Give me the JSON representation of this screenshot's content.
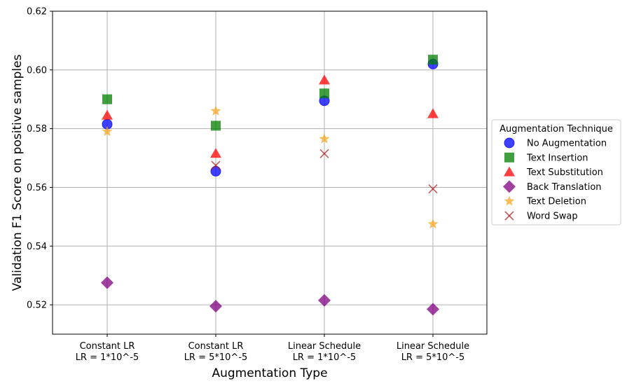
{
  "chart_data": {
    "type": "scatter",
    "xlabel": "Augmentation Type",
    "ylabel": "Validation F1 Score on positive samples",
    "ylim": [
      0.51,
      0.62
    ],
    "yticks": [
      "0.52",
      "0.54",
      "0.56",
      "0.58",
      "0.60",
      "0.62"
    ],
    "grid": true,
    "categories": [
      [
        "Constant LR",
        "LR = 1*10^-5"
      ],
      [
        "Constant LR",
        "LR = 5*10^-5"
      ],
      [
        "Linear Schedule",
        "LR = 1*10^-5"
      ],
      [
        "Linear Schedule",
        "LR = 5*10^-5"
      ]
    ],
    "legend": {
      "title": "Augmentation Technique",
      "placement": "right, outside plot"
    },
    "series": [
      {
        "name": "No Augmentation",
        "marker": "circle",
        "color": "#0000ff",
        "values": [
          0.5815,
          0.5655,
          0.5895,
          0.602
        ]
      },
      {
        "name": "Text Insertion",
        "marker": "square",
        "color": "#008000",
        "values": [
          0.59,
          0.581,
          0.592,
          0.6035
        ]
      },
      {
        "name": "Text Substitution",
        "marker": "triangle",
        "color": "#ff0000",
        "values": [
          0.5845,
          0.5715,
          0.5965,
          0.585
        ]
      },
      {
        "name": "Back Translation",
        "marker": "diamond",
        "color": "#800080",
        "values": [
          0.5275,
          0.5195,
          0.5215,
          0.5185
        ]
      },
      {
        "name": "Text Deletion",
        "marker": "star",
        "color": "#f5a623",
        "values": [
          0.579,
          0.586,
          0.5765,
          0.5475
        ]
      },
      {
        "name": "Word Swap",
        "marker": "x",
        "color": "#b22222",
        "values": [
          null,
          0.5675,
          0.5715,
          0.5595
        ]
      }
    ]
  }
}
